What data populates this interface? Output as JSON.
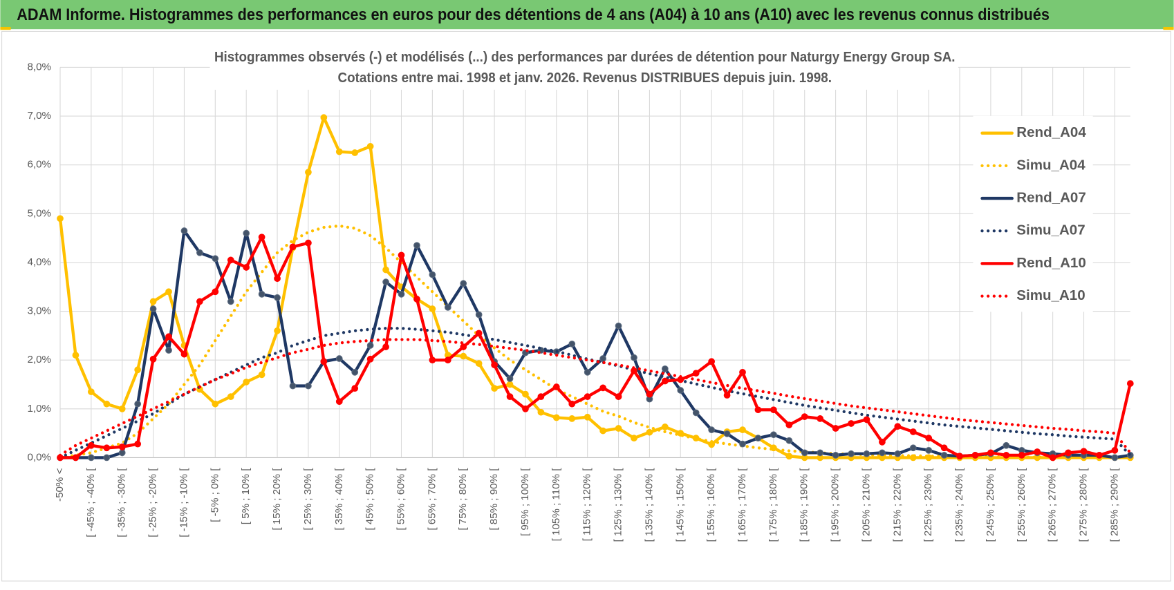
{
  "header": {
    "title": "ADAM Informe. Histogrammes des performances en euros pour des détentions de 4 ans (A04) à 10 ans (A10) avec les revenus connus distribués"
  },
  "chart_data": {
    "type": "line",
    "title": "Histogrammes observés (-) et modélisés (...) des performances par durées de détention pour Naturgy Energy Group SA.",
    "subtitle": "Cotations entre mai. 1998 et janv. 2026. Revenus DISTRIBUES depuis juin. 1998.",
    "categories": [
      "-50% <",
      null,
      "[ -45% ; -40% [",
      null,
      "[ -35% ; -30% [",
      null,
      "[ -25% ; -20% [",
      null,
      "[ -15% ; -10% [",
      null,
      "[ -5% ; 0% [",
      null,
      "[ 5% ; 10% [",
      null,
      "[ 15% ; 20% [",
      null,
      "[ 25% ; 30% [",
      null,
      "[ 35% ; 40% [",
      null,
      "[ 45% ; 50% [",
      null,
      "[ 55% ; 60% [",
      null,
      "[ 65% ; 70% [",
      null,
      "[ 75% ; 80% [",
      null,
      "[ 85% ; 90% [",
      null,
      "[ 95% ; 100% [",
      null,
      "[ 105% ; 110% [",
      null,
      "[ 115% ; 120% [",
      null,
      "[ 125% ; 130% [",
      null,
      "[ 135% ; 140% [",
      null,
      "[ 145% ; 150% [",
      null,
      "[ 155% ; 160% [",
      null,
      "[ 165% ; 170% [",
      null,
      "[ 175% ; 180% [",
      null,
      "[ 185% ; 190% [",
      null,
      "[ 195% ; 200% [",
      null,
      "[ 205% ; 210% [",
      null,
      "[ 215% ; 220% [",
      null,
      "[ 225% ; 230% [",
      null,
      "[ 235% ; 240% [",
      null,
      "[ 245% ; 250% [",
      null,
      "[ 255% ; 260% [",
      null,
      "[ 265% ; 270% [",
      null,
      "[ 275% ; 280% [",
      null,
      "[ 285% ; 290% [",
      null
    ],
    "ylim": [
      0,
      8
    ],
    "yticks": [
      {
        "value": 0,
        "label": "0,0%"
      },
      {
        "value": 1,
        "label": "1,0%"
      },
      {
        "value": 2,
        "label": "2,0%"
      },
      {
        "value": 3,
        "label": "3,0%"
      },
      {
        "value": 4,
        "label": "4,0%"
      },
      {
        "value": 5,
        "label": "5,0%"
      },
      {
        "value": 6,
        "label": "6,0%"
      },
      {
        "value": 7,
        "label": "7,0%"
      },
      {
        "value": 8,
        "label": "8,0%"
      }
    ],
    "grid": true,
    "legend": "right",
    "series": [
      {
        "name": "Rend_A04",
        "color": "#ffc000",
        "line_style": "solid",
        "markers": true,
        "values": [
          4.9,
          2.1,
          1.35,
          1.1,
          1.0,
          1.8,
          3.2,
          3.4,
          2.3,
          1.4,
          1.1,
          1.25,
          1.55,
          1.7,
          2.6,
          4.3,
          5.85,
          6.97,
          6.27,
          6.25,
          6.38,
          3.85,
          3.5,
          3.25,
          3.05,
          2.1,
          2.08,
          1.93,
          1.42,
          1.5,
          1.3,
          0.93,
          0.82,
          0.8,
          0.83,
          0.55,
          0.6,
          0.4,
          0.52,
          0.63,
          0.5,
          0.4,
          0.27,
          0.53,
          0.57,
          0.4,
          0.2,
          0.03,
          0,
          0,
          0,
          0,
          0,
          0,
          0,
          0,
          0,
          0,
          0,
          0,
          0,
          0,
          0,
          0,
          0,
          0,
          0,
          0,
          0,
          0
        ]
      },
      {
        "name": "Simu_A04",
        "color": "#ffc000",
        "line_style": "dotted",
        "markers": false,
        "values": [
          0,
          0.05,
          0.1,
          0.2,
          0.3,
          0.5,
          0.8,
          1.1,
          1.5,
          1.9,
          2.4,
          2.9,
          3.4,
          3.8,
          4.2,
          4.45,
          4.62,
          4.72,
          4.75,
          4.7,
          4.55,
          4.3,
          4.0,
          3.7,
          3.4,
          3.1,
          2.8,
          2.5,
          2.25,
          2.0,
          1.8,
          1.6,
          1.4,
          1.25,
          1.1,
          0.95,
          0.85,
          0.72,
          0.62,
          0.53,
          0.46,
          0.39,
          0.33,
          0.28,
          0.24,
          0.2,
          0.17,
          0.14,
          0.12,
          0.1,
          0.08,
          0.07,
          0.06,
          0.05,
          0.04,
          0.04,
          0.03,
          0.03,
          0.02,
          0.02,
          0.02,
          0.01,
          0.01,
          0.01,
          0.01,
          0.01,
          0,
          0,
          0,
          0
        ]
      },
      {
        "name": "Rend_A07",
        "color": "#1f3864",
        "line_style": "solid",
        "markers": true,
        "values": [
          0,
          0,
          0,
          0,
          0.1,
          1.1,
          3.05,
          2.2,
          4.65,
          4.2,
          4.08,
          3.2,
          4.6,
          3.35,
          3.28,
          1.47,
          1.47,
          1.97,
          2.03,
          1.75,
          2.3,
          3.6,
          3.35,
          4.35,
          3.75,
          3.08,
          3.57,
          2.93,
          1.97,
          1.62,
          2.15,
          2.2,
          2.17,
          2.33,
          1.75,
          2.03,
          2.7,
          2.05,
          1.2,
          1.82,
          1.38,
          0.92,
          0.57,
          0.49,
          0.28,
          0.4,
          0.47,
          0.35,
          0.1,
          0.1,
          0.05,
          0.08,
          0.08,
          0.1,
          0.08,
          0.2,
          0.15,
          0.05,
          0.03,
          0.05,
          0.08,
          0.25,
          0.15,
          0.1,
          0.08,
          0.05,
          0.05,
          0.05,
          0,
          0.05
        ]
      },
      {
        "name": "Simu_A07",
        "color": "#1f3864",
        "line_style": "dotted",
        "markers": false,
        "values": [
          0,
          0.15,
          0.3,
          0.45,
          0.6,
          0.75,
          0.9,
          1.1,
          1.3,
          1.45,
          1.6,
          1.75,
          1.9,
          2.05,
          2.15,
          2.3,
          2.4,
          2.5,
          2.55,
          2.6,
          2.63,
          2.65,
          2.65,
          2.63,
          2.6,
          2.57,
          2.52,
          2.47,
          2.42,
          2.36,
          2.3,
          2.24,
          2.18,
          2.1,
          2.02,
          1.95,
          1.88,
          1.8,
          1.72,
          1.65,
          1.58,
          1.51,
          1.44,
          1.37,
          1.31,
          1.25,
          1.19,
          1.13,
          1.07,
          1.02,
          0.97,
          0.92,
          0.87,
          0.83,
          0.79,
          0.75,
          0.71,
          0.67,
          0.64,
          0.61,
          0.58,
          0.55,
          0.52,
          0.49,
          0.47,
          0.44,
          0.42,
          0.4,
          0.38,
          0.05
        ]
      },
      {
        "name": "Rend_A10",
        "color": "#ff0000",
        "line_style": "solid",
        "markers": true,
        "values": [
          0,
          0,
          0.25,
          0.2,
          0.22,
          0.28,
          2.02,
          2.48,
          2.12,
          3.2,
          3.4,
          4.05,
          3.9,
          4.52,
          3.67,
          4.32,
          4.4,
          1.97,
          1.15,
          1.42,
          2.02,
          2.27,
          4.15,
          3.25,
          2.0,
          2.0,
          2.27,
          2.55,
          1.9,
          1.25,
          1.0,
          1.25,
          1.45,
          1.1,
          1.25,
          1.43,
          1.25,
          1.78,
          1.3,
          1.57,
          1.6,
          1.73,
          1.97,
          1.28,
          1.75,
          0.98,
          0.98,
          0.67,
          0.84,
          0.8,
          0.6,
          0.7,
          0.78,
          0.32,
          0.64,
          0.53,
          0.4,
          0.2,
          0.03,
          0.05,
          0.1,
          0.05,
          0.05,
          0.12,
          0,
          0.1,
          0.13,
          0.05,
          0.15,
          1.52
        ]
      },
      {
        "name": "Simu_A10",
        "color": "#ff0000",
        "line_style": "dotted",
        "markers": false,
        "values": [
          0.05,
          0.25,
          0.4,
          0.55,
          0.7,
          0.85,
          1.0,
          1.15,
          1.3,
          1.45,
          1.6,
          1.72,
          1.85,
          1.95,
          2.05,
          2.15,
          2.22,
          2.3,
          2.35,
          2.38,
          2.4,
          2.42,
          2.42,
          2.42,
          2.4,
          2.38,
          2.35,
          2.32,
          2.28,
          2.24,
          2.2,
          2.15,
          2.1,
          2.05,
          2.0,
          1.95,
          1.9,
          1.84,
          1.78,
          1.72,
          1.66,
          1.6,
          1.54,
          1.48,
          1.42,
          1.37,
          1.32,
          1.26,
          1.21,
          1.16,
          1.11,
          1.06,
          1.02,
          0.98,
          0.94,
          0.9,
          0.86,
          0.82,
          0.78,
          0.75,
          0.72,
          0.69,
          0.66,
          0.63,
          0.6,
          0.58,
          0.55,
          0.53,
          0.5,
          0.1
        ]
      }
    ]
  }
}
